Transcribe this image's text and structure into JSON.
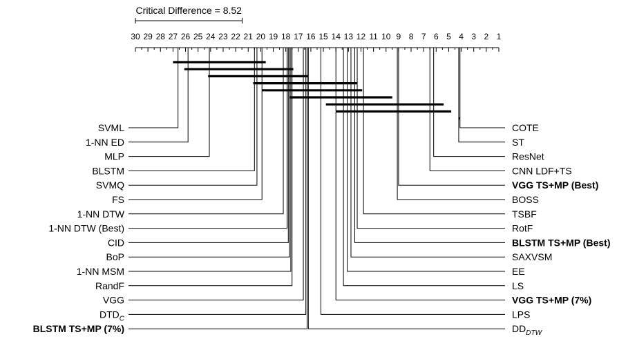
{
  "chart_data": {
    "type": "critical-difference-diagram",
    "title": "",
    "critical_difference": {
      "label": "Critical Difference = 8.52",
      "value": 8.52
    },
    "axis": {
      "min": 1,
      "max": 30,
      "ticks": [
        30,
        29,
        28,
        27,
        26,
        25,
        24,
        23,
        22,
        21,
        20,
        19,
        18,
        17,
        16,
        15,
        14,
        13,
        12,
        11,
        10,
        9,
        8,
        7,
        6,
        5,
        4,
        3,
        2,
        1
      ],
      "reversed": true
    },
    "highlight_color": "#3b9a2b",
    "left_methods": [
      {
        "name": "SVML",
        "rank": 26.6,
        "highlight": false
      },
      {
        "name": "1-NN ED",
        "rank": 25.8,
        "highlight": false
      },
      {
        "name": "MLP",
        "rank": 24.1,
        "highlight": false
      },
      {
        "name": "BLSTM",
        "rank": 20.5,
        "highlight": false
      },
      {
        "name": "SVMQ",
        "rank": 20.3,
        "highlight": false
      },
      {
        "name": "FS",
        "rank": 19.9,
        "highlight": false
      },
      {
        "name": "1-NN DTW",
        "rank": 18.2,
        "highlight": false
      },
      {
        "name": "1-NN DTW (Best)",
        "rank": 17.9,
        "highlight": false
      },
      {
        "name": "CID",
        "rank": 17.8,
        "highlight": false
      },
      {
        "name": "BoP",
        "rank": 17.7,
        "highlight": false
      },
      {
        "name": "1-NN MSM",
        "rank": 17.6,
        "highlight": false
      },
      {
        "name": "RandF",
        "rank": 17.5,
        "highlight": false
      },
      {
        "name": "VGG",
        "rank": 16.6,
        "highlight": false
      },
      {
        "name": "DTD",
        "subscript": "C",
        "rank": 16.4,
        "highlight": false
      },
      {
        "name": "BLSTM TS+MP (7%)",
        "rank": 16.3,
        "highlight": true
      }
    ],
    "right_methods": [
      {
        "name": "COTE",
        "rank": 4.1,
        "highlight": false
      },
      {
        "name": "ST",
        "rank": 4.2,
        "highlight": false
      },
      {
        "name": "ResNet",
        "rank": 6.2,
        "highlight": false
      },
      {
        "name": "CNN LDF+TS",
        "rank": 6.5,
        "highlight": false
      },
      {
        "name": "VGG TS+MP (Best)",
        "rank": 9.0,
        "highlight": true
      },
      {
        "name": "BOSS",
        "rank": 9.1,
        "highlight": false
      },
      {
        "name": "TSBF",
        "rank": 11.8,
        "highlight": false
      },
      {
        "name": "RotF",
        "rank": 12.3,
        "highlight": false
      },
      {
        "name": "BLSTM TS+MP (Best)",
        "rank": 12.5,
        "highlight": true
      },
      {
        "name": "SAXVSM",
        "rank": 12.8,
        "highlight": false
      },
      {
        "name": "EE",
        "rank": 13.1,
        "highlight": false
      },
      {
        "name": "LS",
        "rank": 13.4,
        "highlight": false
      },
      {
        "name": "VGG TS+MP (7%)",
        "rank": 14.0,
        "highlight": true
      },
      {
        "name": "LPS",
        "rank": 15.2,
        "highlight": false
      },
      {
        "name": "DD",
        "subscript": "DTW",
        "rank": 16.2,
        "highlight": false
      }
    ],
    "cliques": [
      [
        27.0,
        19.6
      ],
      [
        26.1,
        17.4
      ],
      [
        24.2,
        16.2
      ],
      [
        20.6,
        12.3
      ],
      [
        19.9,
        11.9
      ],
      [
        17.7,
        9.5
      ],
      [
        14.8,
        5.4
      ],
      [
        14.0,
        4.8
      ],
      [
        4.1,
        4.2
      ]
    ]
  }
}
